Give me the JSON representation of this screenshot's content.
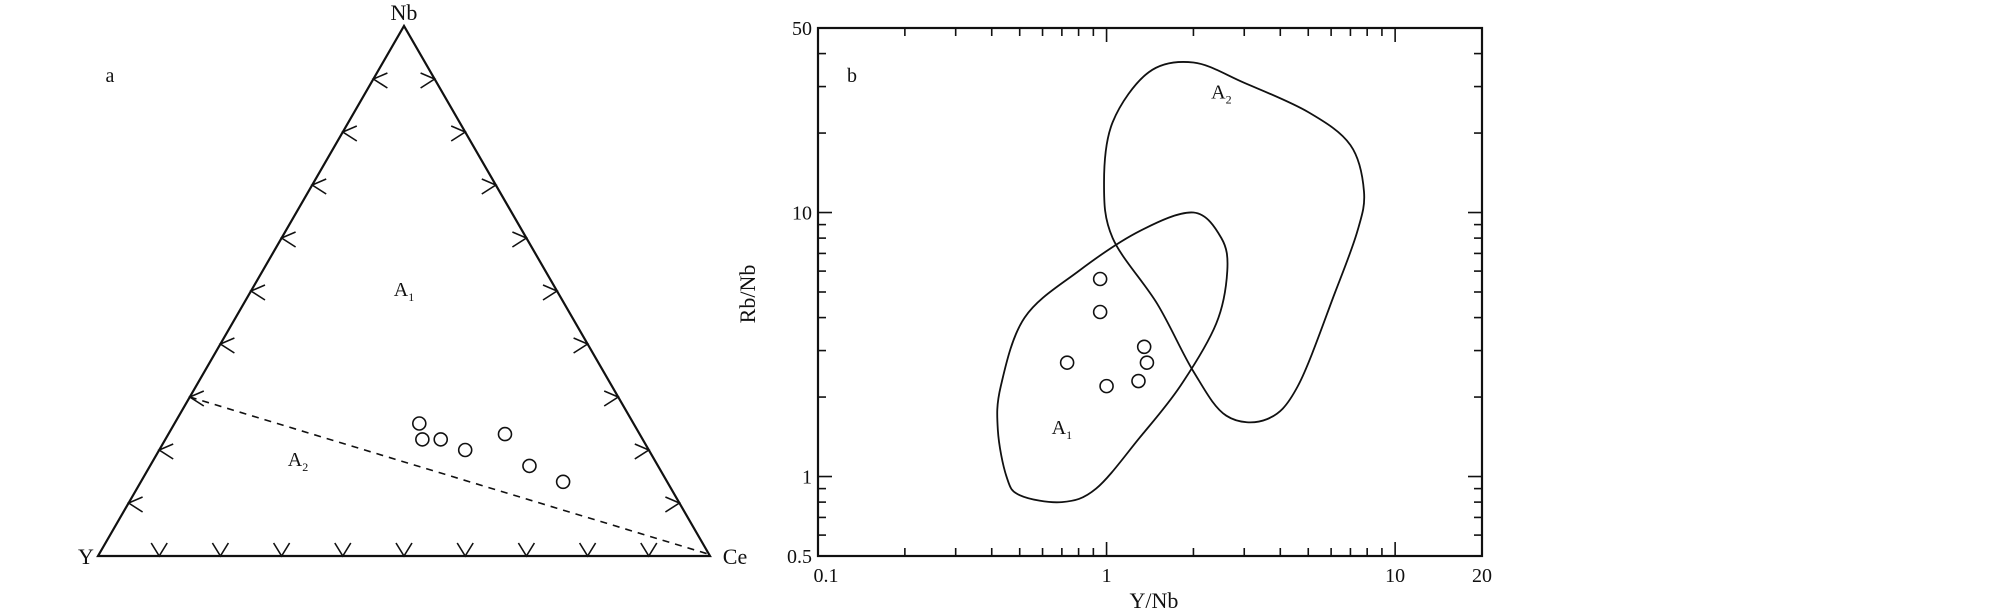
{
  "chart_data": [
    {
      "type": "ternary",
      "panel_label": "a",
      "vertices": {
        "top": "Nb",
        "left": "Y",
        "right": "Ce"
      },
      "field_labels": [
        {
          "text": "A",
          "sub": "1",
          "region": "upper field"
        },
        {
          "text": "A",
          "sub": "2",
          "region": "lower field"
        }
      ],
      "boundary": "dashed line from Y–Nb side (~30% Nb, 70% Y) to Ce vertex",
      "points": [
        {
          "Y": 0.35,
          "Ce": 0.4,
          "Nb": 0.25
        },
        {
          "Y": 0.36,
          "Ce": 0.42,
          "Nb": 0.22
        },
        {
          "Y": 0.33,
          "Ce": 0.45,
          "Nb": 0.22
        },
        {
          "Y": 0.3,
          "Ce": 0.5,
          "Nb": 0.2
        },
        {
          "Y": 0.22,
          "Ce": 0.55,
          "Nb": 0.23
        },
        {
          "Y": 0.21,
          "Ce": 0.62,
          "Nb": 0.17
        },
        {
          "Y": 0.17,
          "Ce": 0.69,
          "Nb": 0.14
        }
      ]
    },
    {
      "type": "scatter",
      "panel_label": "b",
      "xlabel": "Y/Nb",
      "ylabel": "Rb/Nb",
      "xscale": "log",
      "yscale": "log",
      "xlim": [
        0.1,
        20
      ],
      "ylim": [
        0.5,
        50
      ],
      "xticklabels": [
        "0.1",
        "1",
        "10",
        "20"
      ],
      "yticklabels": [
        "0.5",
        "1",
        "10",
        "50"
      ],
      "field_labels": [
        {
          "text": "A",
          "sub": "1",
          "x": 0.7,
          "y": 1.45
        },
        {
          "text": "A",
          "sub": "2",
          "x": 2.5,
          "y": 27
        }
      ],
      "fields": {
        "A1": [
          [
            0.5,
            0.85
          ],
          [
            0.7,
            0.8
          ],
          [
            0.92,
            0.9
          ],
          [
            1.3,
            1.4
          ],
          [
            1.8,
            2.2
          ],
          [
            2.4,
            3.8
          ],
          [
            2.62,
            6.0
          ],
          [
            2.5,
            8.0
          ],
          [
            2.0,
            10.0
          ],
          [
            1.3,
            8.5
          ],
          [
            0.8,
            6.0
          ],
          [
            0.52,
            4.0
          ],
          [
            0.43,
            2.2
          ],
          [
            0.42,
            1.5
          ],
          [
            0.45,
            1.0
          ]
        ],
        "A2": [
          [
            2.6,
            1.7
          ],
          [
            3.6,
            1.65
          ],
          [
            4.6,
            2.2
          ],
          [
            6.2,
            5.0
          ],
          [
            7.4,
            8.5
          ],
          [
            7.8,
            12.0
          ],
          [
            7.0,
            18.0
          ],
          [
            5.0,
            24.0
          ],
          [
            3.0,
            31.0
          ],
          [
            2.0,
            37.0
          ],
          [
            1.4,
            34.0
          ],
          [
            1.05,
            22.0
          ],
          [
            0.98,
            13.0
          ],
          [
            1.05,
            8.0
          ],
          [
            1.5,
            4.5
          ],
          [
            2.0,
            2.5
          ]
        ]
      },
      "series": [
        {
          "x": [
            0.95,
            0.95,
            0.73,
            1.0,
            1.35,
            1.38,
            1.29
          ],
          "y": [
            5.6,
            4.2,
            2.7,
            2.2,
            3.1,
            2.7,
            2.3
          ]
        }
      ]
    }
  ]
}
